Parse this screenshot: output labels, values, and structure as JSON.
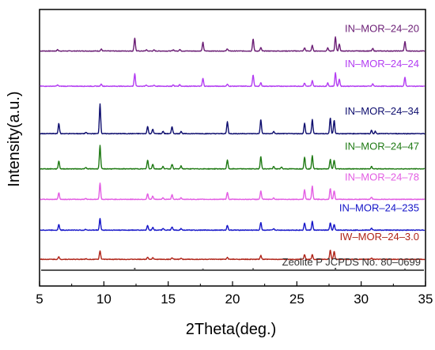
{
  "chart_data": {
    "type": "line",
    "title": "",
    "xlabel": "2Theta(deg.)",
    "ylabel": "Intensity(a.u.)",
    "xlim": [
      5,
      35
    ],
    "x_ticks": [
      5,
      10,
      15,
      20,
      25,
      30,
      35
    ],
    "y_ticks_shown": false,
    "legend": "inline labels right of each trace",
    "grid": false,
    "series": [
      {
        "name": "IN–MOR–24–20",
        "color": "#6b1e75",
        "offset": 0.865,
        "peaks": [
          [
            6.4,
            0.08
          ],
          [
            9.8,
            0.12
          ],
          [
            12.4,
            0.82
          ],
          [
            13.3,
            0.07
          ],
          [
            13.9,
            0.06
          ],
          [
            15.4,
            0.08
          ],
          [
            15.9,
            0.1
          ],
          [
            17.7,
            0.55
          ],
          [
            19.6,
            0.14
          ],
          [
            21.6,
            0.75
          ],
          [
            22.2,
            0.22
          ],
          [
            25.6,
            0.2
          ],
          [
            26.2,
            0.35
          ],
          [
            27.4,
            0.2
          ],
          [
            28.0,
            0.9
          ],
          [
            28.3,
            0.45
          ],
          [
            30.9,
            0.15
          ],
          [
            33.4,
            0.6
          ]
        ]
      },
      {
        "name": "IN–MOR–24–24",
        "color": "#b33df2",
        "offset": 0.73,
        "peaks": [
          [
            6.4,
            0.08
          ],
          [
            9.8,
            0.13
          ],
          [
            12.4,
            0.78
          ],
          [
            13.3,
            0.08
          ],
          [
            13.9,
            0.07
          ],
          [
            15.4,
            0.08
          ],
          [
            15.9,
            0.1
          ],
          [
            17.7,
            0.5
          ],
          [
            19.6,
            0.12
          ],
          [
            21.6,
            0.7
          ],
          [
            22.2,
            0.22
          ],
          [
            25.6,
            0.2
          ],
          [
            26.2,
            0.35
          ],
          [
            27.4,
            0.2
          ],
          [
            28.0,
            0.85
          ],
          [
            28.3,
            0.45
          ],
          [
            30.9,
            0.15
          ],
          [
            33.4,
            0.55
          ]
        ]
      },
      {
        "name": "IN–MOR–24–34",
        "color": "#0d0d6e",
        "offset": 0.548,
        "peaks": [
          [
            6.5,
            0.65
          ],
          [
            8.6,
            0.08
          ],
          [
            9.7,
            1.9
          ],
          [
            13.4,
            0.45
          ],
          [
            13.8,
            0.28
          ],
          [
            14.6,
            0.15
          ],
          [
            15.3,
            0.45
          ],
          [
            16.0,
            0.15
          ],
          [
            19.6,
            0.75
          ],
          [
            22.2,
            0.9
          ],
          [
            23.2,
            0.15
          ],
          [
            25.6,
            0.65
          ],
          [
            26.2,
            0.9
          ],
          [
            27.6,
            1.0
          ],
          [
            27.9,
            0.85
          ],
          [
            30.8,
            0.2
          ],
          [
            31.1,
            0.15
          ]
        ]
      },
      {
        "name": "IN–MOR–24–47",
        "color": "#1f7a14",
        "offset": 0.413,
        "peaks": [
          [
            6.5,
            0.5
          ],
          [
            8.6,
            0.08
          ],
          [
            9.7,
            1.5
          ],
          [
            13.4,
            0.55
          ],
          [
            13.8,
            0.3
          ],
          [
            14.6,
            0.15
          ],
          [
            15.3,
            0.3
          ],
          [
            16.0,
            0.18
          ],
          [
            19.6,
            0.55
          ],
          [
            22.2,
            0.8
          ],
          [
            23.2,
            0.15
          ],
          [
            23.8,
            0.12
          ],
          [
            25.6,
            0.75
          ],
          [
            26.2,
            0.85
          ],
          [
            27.6,
            0.6
          ],
          [
            27.9,
            0.55
          ],
          [
            30.8,
            0.15
          ]
        ]
      },
      {
        "name": "IN–MOR–24–78",
        "color": "#e35de3",
        "offset": 0.296,
        "peaks": [
          [
            6.5,
            0.42
          ],
          [
            8.6,
            0.06
          ],
          [
            9.7,
            1.05
          ],
          [
            13.4,
            0.35
          ],
          [
            13.8,
            0.2
          ],
          [
            14.6,
            0.1
          ],
          [
            15.3,
            0.3
          ],
          [
            16.0,
            0.12
          ],
          [
            19.6,
            0.45
          ],
          [
            22.2,
            0.55
          ],
          [
            23.2,
            0.1
          ],
          [
            25.6,
            0.6
          ],
          [
            26.2,
            0.85
          ],
          [
            27.6,
            0.7
          ],
          [
            27.9,
            0.55
          ],
          [
            30.8,
            0.15
          ]
        ]
      },
      {
        "name": "IN–MOR–24–235",
        "color": "#1414c8",
        "offset": 0.178,
        "peaks": [
          [
            6.5,
            0.35
          ],
          [
            8.6,
            0.05
          ],
          [
            9.7,
            0.75
          ],
          [
            13.4,
            0.3
          ],
          [
            13.8,
            0.18
          ],
          [
            14.6,
            0.1
          ],
          [
            15.3,
            0.2
          ],
          [
            16.0,
            0.1
          ],
          [
            19.6,
            0.3
          ],
          [
            22.2,
            0.5
          ],
          [
            23.2,
            0.08
          ],
          [
            25.6,
            0.45
          ],
          [
            26.2,
            0.55
          ],
          [
            27.6,
            0.45
          ],
          [
            27.9,
            0.35
          ],
          [
            30.8,
            0.12
          ]
        ]
      },
      {
        "name": "IW–MOR–24–3.0",
        "color": "#b02418",
        "offset": 0.066,
        "peaks": [
          [
            6.5,
            0.15
          ],
          [
            8.6,
            0.04
          ],
          [
            9.7,
            0.55
          ],
          [
            13.4,
            0.15
          ],
          [
            13.8,
            0.1
          ],
          [
            15.3,
            0.1
          ],
          [
            16.0,
            0.06
          ],
          [
            19.6,
            0.12
          ],
          [
            22.2,
            0.25
          ],
          [
            25.6,
            0.3
          ],
          [
            26.2,
            0.3
          ],
          [
            27.6,
            0.6
          ],
          [
            27.9,
            0.5
          ],
          [
            30.8,
            0.08
          ]
        ]
      },
      {
        "name": "Zeolite P  JCPDS No. 80–0699",
        "color": "#555555",
        "offset": 0.0,
        "type": "reference_sticks",
        "sticks": [
          [
            12.4,
            0.15
          ],
          [
            17.7,
            0.1
          ],
          [
            21.6,
            0.12
          ],
          [
            28.0,
            0.15
          ],
          [
            33.4,
            0.1
          ]
        ]
      }
    ]
  }
}
